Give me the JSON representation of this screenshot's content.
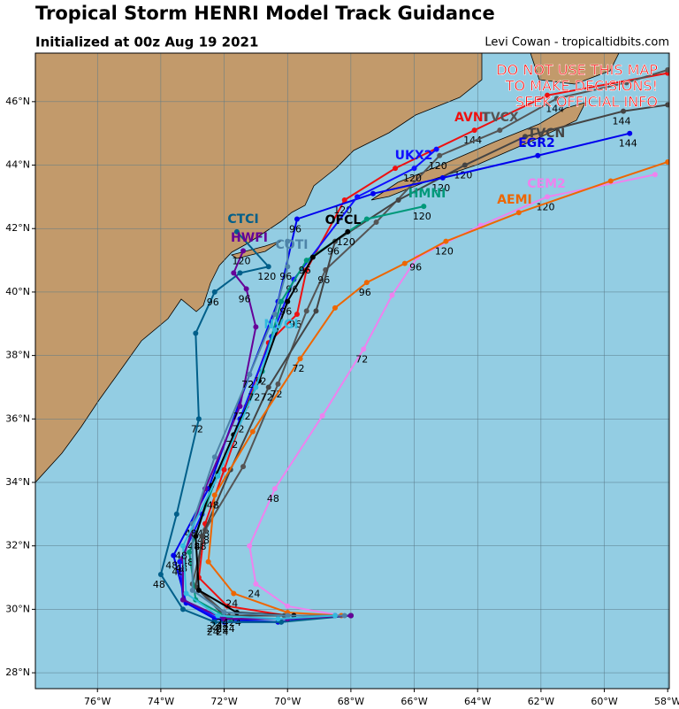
{
  "title": "Tropical Storm HENRI Model Track Guidance",
  "subtitle": "Initialized at 00z Aug 19 2021",
  "credit": "Levi Cowan - tropicaltidbits.com",
  "warning": [
    "DO NOT USE THIS MAP",
    "TO MAKE DECISIONS!",
    "SEEK OFFICIAL INFO"
  ],
  "map": {
    "xlim": [
      -77.96,
      -57.95
    ],
    "ylim": [
      27.5,
      47.53
    ],
    "xticks": [
      {
        "value": -76,
        "label": "76°W"
      },
      {
        "value": -74,
        "label": "74°W"
      },
      {
        "value": -72,
        "label": "72°W"
      },
      {
        "value": -70,
        "label": "70°W"
      },
      {
        "value": -68,
        "label": "68°W"
      },
      {
        "value": -66,
        "label": "66°W"
      },
      {
        "value": -64,
        "label": "64°W"
      },
      {
        "value": -62,
        "label": "62°W"
      },
      {
        "value": -60,
        "label": "60°W"
      },
      {
        "value": -58,
        "label": "58°W"
      }
    ],
    "yticks": [
      {
        "value": 28,
        "label": "28°N"
      },
      {
        "value": 30,
        "label": "30°N"
      },
      {
        "value": 32,
        "label": "32°N"
      },
      {
        "value": 34,
        "label": "34°N"
      },
      {
        "value": 36,
        "label": "36°N"
      },
      {
        "value": 38,
        "label": "38°N"
      },
      {
        "value": 40,
        "label": "40°N"
      },
      {
        "value": 42,
        "label": "42°N"
      },
      {
        "value": 44,
        "label": "44°N"
      },
      {
        "value": 46,
        "label": "46°N"
      }
    ],
    "tracks": [
      {
        "name": "AVNI",
        "color": "#ee1111",
        "points": [
          [
            -68,
            29.8
          ],
          [
            -70,
            29.8
          ],
          [
            -71.9,
            30.1
          ],
          [
            -72.8,
            31.0
          ],
          [
            -72.6,
            32.7
          ],
          [
            -72.0,
            34.4
          ],
          [
            -71.3,
            36.4
          ],
          [
            -70.6,
            38.4
          ],
          [
            -69.7,
            39.3
          ],
          [
            -69.4,
            40.7
          ],
          [
            -68.2,
            42.9
          ],
          [
            -66.6,
            43.9
          ],
          [
            -64.1,
            45.1
          ],
          [
            -61.8,
            46.2
          ],
          [
            -58.0,
            46.9
          ]
        ],
        "hours": [
          null,
          null,
          24,
          null,
          48,
          null,
          72,
          null,
          96,
          null,
          120,
          null,
          144,
          null,
          null
        ]
      },
      {
        "name": "TVCX",
        "color": "#555555",
        "points": [
          [
            -68,
            29.8
          ],
          [
            -70.1,
            29.8
          ],
          [
            -72.0,
            29.9
          ],
          [
            -73.0,
            30.8
          ],
          [
            -72.6,
            32.5
          ],
          [
            -71.4,
            34.5
          ],
          [
            -70.3,
            37.1
          ],
          [
            -69.4,
            39.4
          ],
          [
            -68.8,
            40.7
          ],
          [
            -67.2,
            42.2
          ],
          [
            -65.2,
            44.3
          ],
          [
            -63.3,
            45.1
          ],
          [
            -61.5,
            46.1
          ],
          [
            -59.3,
            46.6
          ],
          [
            -58,
            47.0
          ]
        ],
        "hours": [
          null,
          null,
          24,
          null,
          48,
          null,
          72,
          null,
          96,
          null,
          120,
          null,
          144,
          null,
          null
        ]
      },
      {
        "name": "TVCN",
        "color": "#444444",
        "points": [
          [
            -68,
            29.8
          ],
          [
            -70,
            29.8
          ],
          [
            -72,
            29.8
          ],
          [
            -72.9,
            30.7
          ],
          [
            -72.7,
            32.3
          ],
          [
            -71.8,
            34.4
          ],
          [
            -70.6,
            37.0
          ],
          [
            -69.1,
            39.4
          ],
          [
            -68.5,
            41.6
          ],
          [
            -66.5,
            42.9
          ],
          [
            -64.4,
            44.0
          ],
          [
            -62.5,
            44.9
          ],
          [
            -59.4,
            45.7
          ],
          [
            -58,
            45.9
          ]
        ],
        "hours": [
          null,
          null,
          24,
          null,
          48,
          null,
          72,
          null,
          96,
          null,
          120,
          null,
          144,
          null
        ]
      },
      {
        "name": "EGR2",
        "color": "#0000ee",
        "points": [
          [
            -68.5,
            29.8
          ],
          [
            -70.3,
            29.6
          ],
          [
            -72.3,
            29.7
          ],
          [
            -73.2,
            30.2
          ],
          [
            -73.6,
            31.7
          ],
          [
            -72.5,
            33.8
          ],
          [
            -71.2,
            37.4
          ],
          [
            -70.3,
            39.7
          ],
          [
            -69.7,
            42.3
          ],
          [
            -67.3,
            43.1
          ],
          [
            -65.1,
            43.6
          ],
          [
            -62.1,
            44.3
          ],
          [
            -59.2,
            45.0
          ]
        ],
        "hours": [
          null,
          null,
          24,
          null,
          48,
          null,
          72,
          null,
          96,
          null,
          120,
          null,
          144
        ]
      },
      {
        "name": "UKX2",
        "color": "#1010ff",
        "points": [
          [
            -68.5,
            29.8
          ],
          [
            -70.2,
            29.6
          ],
          [
            -72.0,
            29.6
          ],
          [
            -73.3,
            30.3
          ],
          [
            -73.4,
            31.5
          ],
          [
            -72.7,
            33.0
          ],
          [
            -71.5,
            36.0
          ],
          [
            -70.5,
            38.6
          ],
          [
            -69.8,
            40.4
          ],
          [
            -67.8,
            43.0
          ],
          [
            -66.0,
            43.9
          ],
          [
            -65.3,
            44.5
          ]
        ],
        "hours": [
          null,
          null,
          24,
          null,
          48,
          null,
          72,
          null,
          96,
          null,
          120,
          null
        ]
      },
      {
        "name": "HMNI",
        "color": "#00997a",
        "points": [
          [
            -68.3,
            29.8
          ],
          [
            -70,
            29.7
          ],
          [
            -71.8,
            29.7
          ],
          [
            -72.9,
            30.3
          ],
          [
            -73.1,
            31.8
          ],
          [
            -72.2,
            34.3
          ],
          [
            -70.8,
            37.5
          ],
          [
            -70.2,
            39.7
          ],
          [
            -69.4,
            41.0
          ],
          [
            -67.5,
            42.3
          ],
          [
            -65.7,
            42.7
          ]
        ],
        "hours": [
          null,
          null,
          24,
          null,
          48,
          null,
          72,
          null,
          96,
          null,
          120
        ]
      },
      {
        "name": "CEM2",
        "color": "#ee82ee",
        "points": [
          [
            -68.3,
            29.8
          ],
          [
            -70,
            30.1
          ],
          [
            -71.0,
            30.8
          ],
          [
            -71.2,
            32.0
          ],
          [
            -70.4,
            33.8
          ],
          [
            -68.9,
            36.1
          ],
          [
            -67.6,
            38.2
          ],
          [
            -66.7,
            39.9
          ],
          [
            -65.9,
            41.1
          ],
          [
            -63.9,
            42.1
          ],
          [
            -61.8,
            43.0
          ],
          [
            -58.4,
            43.7
          ]
        ],
        "hours": [
          null,
          null,
          24,
          null,
          48,
          null,
          72,
          null,
          96,
          null,
          120,
          null
        ]
      },
      {
        "name": "AEMI",
        "color": "#ee6600",
        "points": [
          [
            -68.3,
            29.8
          ],
          [
            -70,
            29.9
          ],
          [
            -71.7,
            30.5
          ],
          [
            -72.5,
            31.5
          ],
          [
            -72.3,
            33.6
          ],
          [
            -71.1,
            35.6
          ],
          [
            -69.6,
            37.9
          ],
          [
            -68.5,
            39.5
          ],
          [
            -67.5,
            40.3
          ],
          [
            -66.3,
            40.9
          ],
          [
            -65.0,
            41.6
          ],
          [
            -62.7,
            42.5
          ],
          [
            -59.8,
            43.5
          ],
          [
            -58,
            44.1
          ]
        ],
        "hours": [
          null,
          null,
          24,
          null,
          48,
          null,
          72,
          null,
          96,
          null,
          120,
          null,
          null,
          null
        ]
      },
      {
        "name": "OFCL",
        "color": "#000000",
        "points": [
          [
            -68,
            29.8
          ],
          [
            -69.8,
            29.8
          ],
          [
            -71.6,
            29.9
          ],
          [
            -72.8,
            30.6
          ],
          [
            -72.9,
            32.3
          ],
          [
            -72.4,
            33.9
          ],
          [
            -71.7,
            35.5
          ],
          [
            -70.9,
            37.2
          ],
          [
            -70.0,
            39.7
          ],
          [
            -69.2,
            41.1
          ],
          [
            -68.1,
            41.9
          ]
        ],
        "hours": [
          null,
          null,
          24,
          null,
          48,
          null,
          72,
          null,
          96,
          null,
          120
        ]
      },
      {
        "name": "CTCI",
        "color": "#005f8a",
        "points": [
          [
            -68.0,
            29.8
          ],
          [
            -70.2,
            29.6
          ],
          [
            -72.3,
            29.6
          ],
          [
            -73.3,
            30.0
          ],
          [
            -74.0,
            31.1
          ],
          [
            -73.5,
            33.0
          ],
          [
            -72.8,
            36.0
          ],
          [
            -72.9,
            38.7
          ],
          [
            -72.3,
            40.0
          ],
          [
            -71.5,
            40.6
          ],
          [
            -70.6,
            40.8
          ],
          [
            -71.6,
            41.9
          ]
        ],
        "hours": [
          null,
          null,
          24,
          null,
          48,
          null,
          72,
          null,
          96,
          null,
          120,
          null
        ]
      },
      {
        "name": "HWFI",
        "color": "#660099",
        "points": [
          [
            -68,
            29.8
          ],
          [
            -70,
            29.7
          ],
          [
            -72,
            29.7
          ],
          [
            -73.3,
            30.3
          ],
          [
            -73.3,
            31.6
          ],
          [
            -72.6,
            33.8
          ],
          [
            -71.5,
            36.4
          ],
          [
            -71.0,
            38.9
          ],
          [
            -71.3,
            40.1
          ],
          [
            -71.7,
            40.6
          ],
          [
            -71.4,
            41.3
          ]
        ],
        "hours": [
          null,
          null,
          24,
          null,
          48,
          null,
          72,
          null,
          96,
          null,
          120
        ]
      },
      {
        "name": "COTI",
        "color": "#4e84a8",
        "points": [
          [
            -68.2,
            29.8
          ],
          [
            -70,
            29.8
          ],
          [
            -72,
            29.9
          ],
          [
            -73.0,
            30.6
          ],
          [
            -73.0,
            32.7
          ],
          [
            -72.3,
            34.8
          ],
          [
            -71.2,
            37.4
          ],
          [
            -70.4,
            39.3
          ],
          [
            -70.0,
            40.8
          ],
          [
            -70.0,
            41.6
          ]
        ],
        "hours": [
          null,
          null,
          24,
          null,
          48,
          null,
          72,
          null,
          96,
          null
        ]
      },
      {
        "name": "NVGI",
        "color": "#33bbdd",
        "points": [
          [
            -68.5,
            29.8
          ],
          [
            -70.3,
            29.7
          ],
          [
            -72.2,
            29.8
          ],
          [
            -73.2,
            30.5
          ],
          [
            -73.3,
            32.0
          ],
          [
            -72.2,
            34.2
          ],
          [
            -71.0,
            37.0
          ],
          [
            -70.4,
            38.8
          ]
        ],
        "hours": [
          null,
          null,
          24,
          null,
          48,
          null,
          72,
          null
        ]
      }
    ]
  }
}
